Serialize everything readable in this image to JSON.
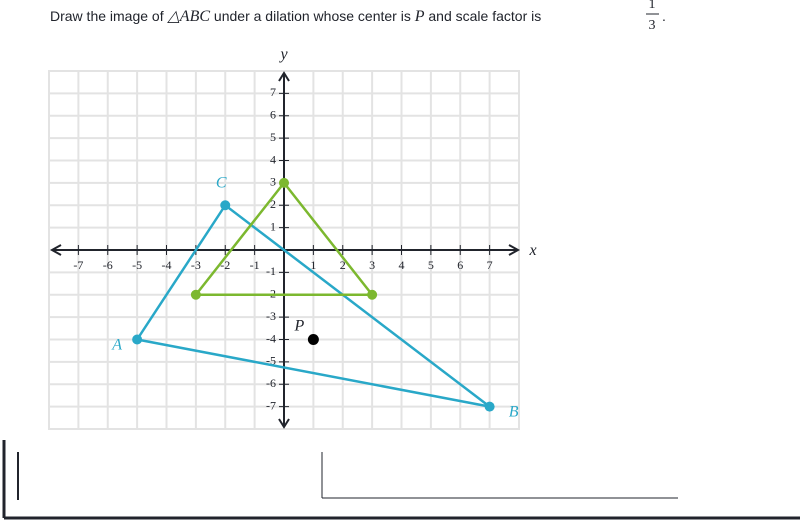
{
  "question": {
    "before": "Draw the image of",
    "triangle": "△ABC",
    "middle": "under a dilation whose center is",
    "center": "P",
    "after": "and scale factor is",
    "numerator": "1",
    "denominator": "3"
  },
  "chart_data": {
    "type": "geometry",
    "x_label": "x",
    "y_label": "y",
    "xlim": [
      -8,
      8
    ],
    "ylim": [
      -8,
      8
    ],
    "xticks": [
      -7,
      -6,
      -5,
      -4,
      -3,
      -2,
      -1,
      1,
      2,
      3,
      4,
      5,
      6,
      7
    ],
    "yticks": [
      -7,
      -6,
      -5,
      -4,
      -3,
      -2,
      -1,
      1,
      2,
      3,
      4,
      5,
      6,
      7
    ],
    "grid": true,
    "series": [
      {
        "color": "#29a8c8",
        "labels": [
          "A",
          "B",
          "C"
        ],
        "x": [
          -5,
          7,
          -2
        ],
        "y": [
          -4,
          -7,
          2
        ]
      },
      {
        "color": "#7cb82f",
        "x": [
          0,
          -3,
          3
        ],
        "y": [
          3,
          -2,
          -2
        ]
      }
    ],
    "points": [
      {
        "label": "P",
        "color": "#000000",
        "x": 1,
        "y": -4
      }
    ]
  }
}
